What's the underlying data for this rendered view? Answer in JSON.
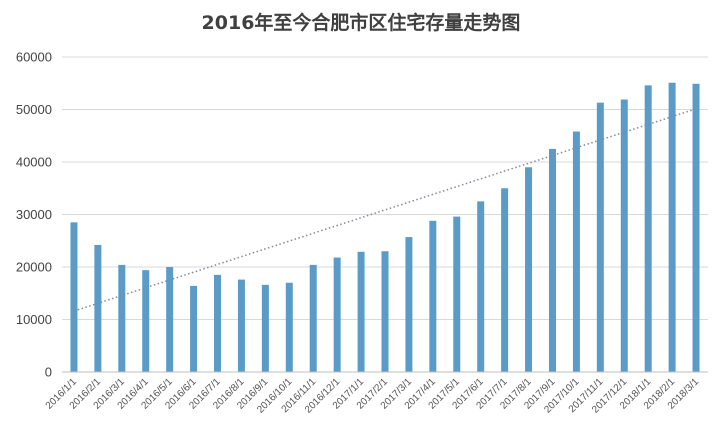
{
  "chart_data": {
    "type": "bar",
    "title": "2016年至今合肥市区住宅存量走势图",
    "xlabel": "",
    "ylabel": "",
    "ylim": [
      0,
      60000
    ],
    "yticks": [
      0,
      10000,
      20000,
      30000,
      40000,
      50000,
      60000
    ],
    "grid": true,
    "legend": "none",
    "trendline": "linear",
    "bar_color": "#5b9bc8",
    "trend_color": "#7f8c9a",
    "categories": [
      "2016/1/1",
      "2016/2/1",
      "2016/3/1",
      "2016/4/1",
      "2016/5/1",
      "2016/6/1",
      "2016/7/1",
      "2016/8/1",
      "2016/9/1",
      "2016/10/1",
      "2016/11/1",
      "2016/12/1",
      "2017/1/1",
      "2017/2/1",
      "2017/3/1",
      "2017/4/1",
      "2017/5/1",
      "2017/6/1",
      "2017/7/1",
      "2017/8/1",
      "2017/9/1",
      "2017/10/1",
      "2017/11/1",
      "2017/12/1",
      "2018/1/1",
      "2018/2/1",
      "2018/3/1"
    ],
    "values": [
      28500,
      24200,
      20400,
      19400,
      20000,
      16400,
      18500,
      17600,
      16600,
      17000,
      20400,
      21800,
      22900,
      23000,
      25700,
      28800,
      29600,
      32500,
      35000,
      39000,
      42500,
      45800,
      51300,
      51900,
      54600,
      55100,
      54900
    ]
  }
}
